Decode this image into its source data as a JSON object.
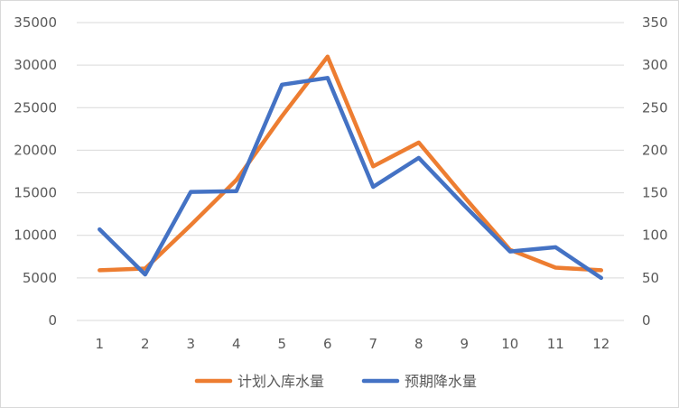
{
  "chart_data": {
    "type": "line",
    "x": [
      "1",
      "2",
      "3",
      "4",
      "5",
      "6",
      "7",
      "8",
      "9",
      "10",
      "11",
      "12"
    ],
    "y_left": {
      "ylim": [
        0,
        35000
      ],
      "ticks": [
        "0",
        "5000",
        "10000",
        "15000",
        "20000",
        "25000",
        "30000",
        "35000"
      ]
    },
    "y_right": {
      "ylim": [
        0,
        350
      ],
      "ticks": [
        "0",
        "50",
        "100",
        "150",
        "200",
        "250",
        "300",
        "350"
      ]
    },
    "series": [
      {
        "name": "计划入库水量",
        "axis": "left",
        "color": "#ED7D31",
        "values": [
          5900,
          6100,
          11200,
          16500,
          24000,
          31000,
          18100,
          20900,
          14500,
          8300,
          6200,
          5900
        ]
      },
      {
        "name": "预期降水量",
        "axis": "right",
        "color": "#4472C4",
        "values": [
          107,
          54,
          151,
          152,
          277,
          285,
          157,
          191,
          135,
          81,
          86,
          50
        ]
      }
    ],
    "grid": true,
    "legend": "bottom"
  }
}
